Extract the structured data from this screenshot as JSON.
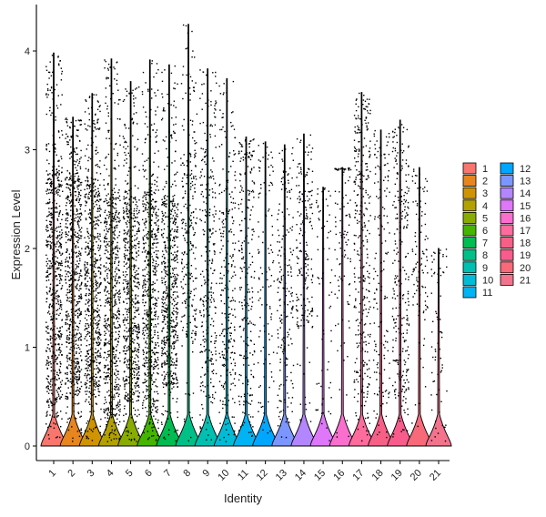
{
  "chart_data": {
    "type": "violin",
    "xlabel": "Identity",
    "ylabel": "Expression Level",
    "ylim": [
      0,
      4.3
    ],
    "yticks": [
      0,
      1,
      2,
      3,
      4
    ],
    "grid": false,
    "legend_position": "right",
    "categories": [
      "1",
      "2",
      "3",
      "4",
      "5",
      "6",
      "7",
      "8",
      "9",
      "10",
      "11",
      "12",
      "13",
      "14",
      "15",
      "16",
      "17",
      "18",
      "19",
      "20",
      "21"
    ],
    "colors": [
      "#F8766D",
      "#E7851E",
      "#D09400",
      "#B2A100",
      "#89AC00",
      "#45B500",
      "#00BC51",
      "#00C087",
      "#00C0B2",
      "#00BCD6",
      "#00B3F2",
      "#00A6FF",
      "#7C96FF",
      "#B386FF",
      "#DE77F9",
      "#FA6FCE",
      "#FF6B9D",
      "#F65F86",
      "#F75C8C",
      "#F8697A",
      "#F3728C"
    ],
    "series": [
      {
        "category": "1",
        "max": 3.98,
        "dense_low": 0.42,
        "dense_high": 2.85,
        "density": 0.95
      },
      {
        "category": "2",
        "max": 3.33,
        "dense_low": 0.5,
        "dense_high": 2.75,
        "density": 0.95
      },
      {
        "category": "3",
        "max": 3.57,
        "dense_low": 0.5,
        "dense_high": 2.7,
        "density": 0.92
      },
      {
        "category": "4",
        "max": 3.92,
        "dense_low": 0.3,
        "dense_high": 2.6,
        "density": 0.9
      },
      {
        "category": "5",
        "max": 3.69,
        "dense_low": 0.45,
        "dense_high": 2.55,
        "density": 0.88
      },
      {
        "category": "6",
        "max": 3.91,
        "dense_low": 0.35,
        "dense_high": 2.6,
        "density": 0.86
      },
      {
        "category": "7",
        "max": 3.86,
        "dense_low": 0.6,
        "dense_high": 2.5,
        "density": 0.82
      },
      {
        "category": "8",
        "max": 4.27,
        "dense_low": 1.1,
        "dense_high": 3.0,
        "density": 0.35
      },
      {
        "category": "9",
        "max": 3.82,
        "dense_low": 0.5,
        "dense_high": 3.0,
        "density": 0.4
      },
      {
        "category": "10",
        "max": 3.72,
        "dense_low": 0.4,
        "dense_high": 2.7,
        "density": 0.35
      },
      {
        "category": "11",
        "max": 3.13,
        "dense_low": 0.4,
        "dense_high": 2.9,
        "density": 0.3
      },
      {
        "category": "12",
        "max": 3.08,
        "dense_low": 0.6,
        "dense_high": 2.6,
        "density": 0.12
      },
      {
        "category": "13",
        "max": 3.05,
        "dense_low": 0.4,
        "dense_high": 2.4,
        "density": 0.25
      },
      {
        "category": "14",
        "max": 3.16,
        "dense_low": 1.2,
        "dense_high": 2.6,
        "density": 0.25
      },
      {
        "category": "15",
        "max": 2.62,
        "dense_low": 0.4,
        "dense_high": 2.2,
        "density": 0.06
      },
      {
        "category": "16",
        "max": 2.82,
        "dense_low": 1.2,
        "dense_high": 2.8,
        "density": 0.12
      },
      {
        "category": "17",
        "max": 3.58,
        "dense_low": 0.5,
        "dense_high": 3.2,
        "density": 0.45
      },
      {
        "category": "18",
        "max": 3.2,
        "dense_low": 0.5,
        "dense_high": 2.8,
        "density": 0.18
      },
      {
        "category": "19",
        "max": 3.3,
        "dense_low": 0.5,
        "dense_high": 2.8,
        "density": 0.35
      },
      {
        "category": "20",
        "max": 2.82,
        "dense_low": 1.3,
        "dense_high": 2.4,
        "density": 0.12
      },
      {
        "category": "21",
        "max": 2.0,
        "dense_low": 0.3,
        "dense_high": 1.6,
        "density": 0.06
      }
    ]
  }
}
